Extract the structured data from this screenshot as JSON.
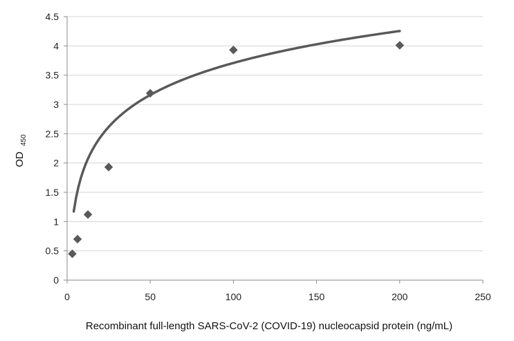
{
  "chart_data": {
    "type": "scatter",
    "title": "",
    "xlabel": "Recombinant full-length SARS-CoV-2 (COVID-19) nucleocapsid protein (ng/mL)",
    "ylabel": {
      "main": "OD",
      "subscript": "450"
    },
    "xlim": [
      0,
      250
    ],
    "ylim": [
      0,
      4.5
    ],
    "x_ticks": [
      "0",
      "50",
      "100",
      "150",
      "200",
      "250"
    ],
    "y_ticks": [
      "0",
      "0.5",
      "1",
      "1.5",
      "2",
      "2.5",
      "3",
      "3.5",
      "4",
      "4.5"
    ],
    "grid": "horizontal",
    "legend": "none",
    "series": [
      {
        "type": "scatter",
        "marker": "diamond",
        "color": "#595959",
        "points": [
          {
            "x": 3.13,
            "y": 0.45
          },
          {
            "x": 6.25,
            "y": 0.7
          },
          {
            "x": 12.5,
            "y": 1.12
          },
          {
            "x": 25,
            "y": 1.93
          },
          {
            "x": 50,
            "y": 3.19
          },
          {
            "x": 100,
            "y": 3.93
          },
          {
            "x": 200,
            "y": 4.01
          }
        ]
      },
      {
        "type": "trendline",
        "fit": "logarithmic",
        "color": "#595959",
        "x_range": [
          4,
          200
        ],
        "coefficients": {
          "a": 0.0815,
          "b": 0.7875
        }
      }
    ]
  }
}
